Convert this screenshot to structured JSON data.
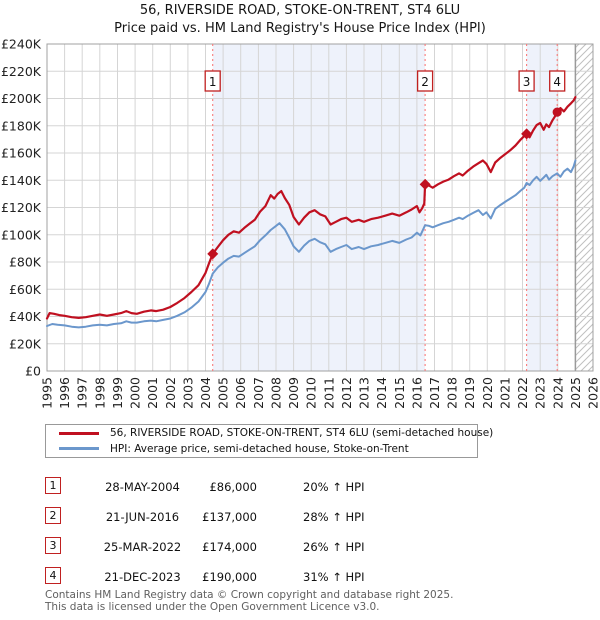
{
  "title": "56, RIVERSIDE ROAD, STOKE-ON-TRENT, ST4 6LU",
  "subtitle": "Price paid vs. HM Land Registry's House Price Index (HPI)",
  "colors": {
    "property_line": "#c01020",
    "hpi_line": "#6b97cc",
    "sale_dashed": "#fa7a7a",
    "band_fill": "#eef2fb",
    "grid": "#d5d5d5",
    "plot_border": "#a0a0a0",
    "badge_border": "#c02020",
    "hatch_line": "#c0c0c0",
    "hatch_edge": "#9a9a9a",
    "text": "#111111"
  },
  "chart_data": {
    "type": "line",
    "title": "56, RIVERSIDE ROAD, STOKE-ON-TRENT, ST4 6LU — Price paid vs. HM Land Registry's House Price Index (HPI)",
    "xlabel": "",
    "ylabel": "",
    "x_axis": {
      "range": [
        1995,
        2026
      ],
      "ticks": [
        "1995",
        "1996",
        "1997",
        "1998",
        "1999",
        "2000",
        "2001",
        "2002",
        "2003",
        "2004",
        "2005",
        "2006",
        "2007",
        "2008",
        "2009",
        "2010",
        "2011",
        "2012",
        "2013",
        "2014",
        "2015",
        "2016",
        "2017",
        "2018",
        "2019",
        "2020",
        "2021",
        "2022",
        "2023",
        "2024",
        "2025",
        "2026"
      ]
    },
    "y_axis": {
      "max_k": 240,
      "tick_step_k": 20,
      "ticks": [
        "£0",
        "£20K",
        "£40K",
        "£60K",
        "£80K",
        "£100K",
        "£120K",
        "£140K",
        "£160K",
        "£180K",
        "£200K",
        "£220K",
        "£240K"
      ]
    },
    "units": "GBP thousands",
    "grid": true,
    "legend_position": "below",
    "shaded_bands": [
      [
        2004.41,
        2016.47
      ],
      [
        2022.23,
        2023.97
      ]
    ],
    "hatch_region": [
      2025,
      2026
    ],
    "series": [
      {
        "name": "56, RIVERSIDE ROAD, STOKE-ON-TRENT, ST4 6LU (semi-detached house)",
        "color": "#c01020",
        "width": 2.2,
        "points": [
          [
            1995.0,
            38.5
          ],
          [
            1995.15,
            42.5
          ],
          [
            1995.4,
            42.0
          ],
          [
            1995.7,
            41.0
          ],
          [
            1996.0,
            40.5
          ],
          [
            1996.4,
            39.5
          ],
          [
            1996.8,
            39.0
          ],
          [
            1997.2,
            39.5
          ],
          [
            1997.6,
            40.5
          ],
          [
            1998.0,
            41.5
          ],
          [
            1998.4,
            40.5
          ],
          [
            1998.8,
            41.5
          ],
          [
            1999.2,
            42.5
          ],
          [
            1999.5,
            44.0
          ],
          [
            1999.8,
            42.5
          ],
          [
            2000.1,
            42.0
          ],
          [
            2000.5,
            43.5
          ],
          [
            2000.9,
            44.5
          ],
          [
            2001.2,
            44.0
          ],
          [
            2001.6,
            45.0
          ],
          [
            2002.0,
            47.0
          ],
          [
            2002.4,
            50.0
          ],
          [
            2002.8,
            53.5
          ],
          [
            2003.2,
            58.0
          ],
          [
            2003.6,
            63.0
          ],
          [
            2004.0,
            72.0
          ],
          [
            2004.2,
            79.0
          ],
          [
            2004.41,
            86.0
          ],
          [
            2004.7,
            91.0
          ],
          [
            2005.0,
            96.0
          ],
          [
            2005.3,
            100.0
          ],
          [
            2005.6,
            102.5
          ],
          [
            2005.9,
            101.5
          ],
          [
            2006.2,
            105.0
          ],
          [
            2006.5,
            108.0
          ],
          [
            2006.8,
            111.0
          ],
          [
            2007.1,
            117.0
          ],
          [
            2007.4,
            121.0
          ],
          [
            2007.7,
            129.0
          ],
          [
            2007.9,
            126.5
          ],
          [
            2008.1,
            130.0
          ],
          [
            2008.3,
            132.0
          ],
          [
            2008.5,
            127.0
          ],
          [
            2008.75,
            122.0
          ],
          [
            2009.0,
            113.0
          ],
          [
            2009.3,
            107.5
          ],
          [
            2009.6,
            112.5
          ],
          [
            2009.9,
            116.5
          ],
          [
            2010.2,
            118.0
          ],
          [
            2010.5,
            115.0
          ],
          [
            2010.8,
            113.5
          ],
          [
            2011.1,
            107.5
          ],
          [
            2011.4,
            109.5
          ],
          [
            2011.7,
            111.5
          ],
          [
            2012.0,
            112.5
          ],
          [
            2012.3,
            109.5
          ],
          [
            2012.7,
            111.0
          ],
          [
            2013.0,
            109.5
          ],
          [
            2013.4,
            111.5
          ],
          [
            2013.8,
            112.5
          ],
          [
            2014.2,
            114.0
          ],
          [
            2014.6,
            115.5
          ],
          [
            2015.0,
            114.0
          ],
          [
            2015.4,
            116.5
          ],
          [
            2015.7,
            118.5
          ],
          [
            2016.0,
            121.0
          ],
          [
            2016.15,
            116.5
          ],
          [
            2016.3,
            119.5
          ],
          [
            2016.42,
            123.0
          ],
          [
            2016.47,
            137.0
          ],
          [
            2016.7,
            136.0
          ],
          [
            2016.9,
            134.5
          ],
          [
            2017.2,
            137.0
          ],
          [
            2017.5,
            139.0
          ],
          [
            2017.8,
            140.5
          ],
          [
            2018.1,
            143.0
          ],
          [
            2018.4,
            145.0
          ],
          [
            2018.6,
            143.5
          ],
          [
            2018.9,
            147.0
          ],
          [
            2019.2,
            150.0
          ],
          [
            2019.5,
            152.5
          ],
          [
            2019.75,
            154.5
          ],
          [
            2019.95,
            152.0
          ],
          [
            2020.2,
            146.0
          ],
          [
            2020.45,
            153.0
          ],
          [
            2020.7,
            156.0
          ],
          [
            2021.0,
            159.0
          ],
          [
            2021.3,
            162.0
          ],
          [
            2021.6,
            165.5
          ],
          [
            2021.9,
            170.0
          ],
          [
            2022.1,
            172.5
          ],
          [
            2022.23,
            174.0
          ],
          [
            2022.4,
            171.5
          ],
          [
            2022.6,
            176.5
          ],
          [
            2022.8,
            180.5
          ],
          [
            2023.0,
            182.0
          ],
          [
            2023.2,
            177.0
          ],
          [
            2023.35,
            181.0
          ],
          [
            2023.5,
            179.0
          ],
          [
            2023.7,
            184.0
          ],
          [
            2023.85,
            187.0
          ],
          [
            2023.97,
            190.0
          ],
          [
            2024.15,
            193.0
          ],
          [
            2024.35,
            190.5
          ],
          [
            2024.55,
            194.0
          ],
          [
            2024.75,
            196.5
          ],
          [
            2024.9,
            198.5
          ],
          [
            2025.0,
            201.0
          ]
        ]
      },
      {
        "name": "HPI: Average price, semi-detached house, Stoke-on-Trent",
        "color": "#6b97cc",
        "width": 2.0,
        "points": [
          [
            1995.0,
            33.0
          ],
          [
            1995.3,
            34.5
          ],
          [
            1995.6,
            34.0
          ],
          [
            1996.0,
            33.5
          ],
          [
            1996.4,
            32.5
          ],
          [
            1996.8,
            32.0
          ],
          [
            1997.2,
            32.5
          ],
          [
            1997.6,
            33.5
          ],
          [
            1998.0,
            34.0
          ],
          [
            1998.4,
            33.5
          ],
          [
            1998.8,
            34.5
          ],
          [
            1999.2,
            35.0
          ],
          [
            1999.5,
            36.5
          ],
          [
            1999.8,
            35.5
          ],
          [
            2000.1,
            35.5
          ],
          [
            2000.5,
            36.5
          ],
          [
            2000.9,
            37.0
          ],
          [
            2001.2,
            36.5
          ],
          [
            2001.6,
            37.5
          ],
          [
            2002.0,
            38.5
          ],
          [
            2002.4,
            40.5
          ],
          [
            2002.8,
            43.0
          ],
          [
            2003.2,
            46.5
          ],
          [
            2003.6,
            51.0
          ],
          [
            2004.0,
            58.0
          ],
          [
            2004.2,
            64.0
          ],
          [
            2004.41,
            71.5
          ],
          [
            2004.7,
            76.0
          ],
          [
            2005.0,
            79.5
          ],
          [
            2005.3,
            82.5
          ],
          [
            2005.6,
            84.5
          ],
          [
            2005.9,
            84.0
          ],
          [
            2006.2,
            86.5
          ],
          [
            2006.5,
            89.0
          ],
          [
            2006.8,
            91.5
          ],
          [
            2007.1,
            96.0
          ],
          [
            2007.4,
            99.5
          ],
          [
            2007.7,
            103.5
          ],
          [
            2008.0,
            106.5
          ],
          [
            2008.2,
            108.5
          ],
          [
            2008.5,
            104.0
          ],
          [
            2008.75,
            98.0
          ],
          [
            2009.0,
            91.5
          ],
          [
            2009.3,
            87.5
          ],
          [
            2009.6,
            92.0
          ],
          [
            2009.9,
            95.5
          ],
          [
            2010.2,
            97.0
          ],
          [
            2010.5,
            94.5
          ],
          [
            2010.8,
            93.0
          ],
          [
            2011.1,
            87.5
          ],
          [
            2011.4,
            89.5
          ],
          [
            2011.7,
            91.0
          ],
          [
            2012.0,
            92.5
          ],
          [
            2012.3,
            89.5
          ],
          [
            2012.7,
            91.0
          ],
          [
            2013.0,
            89.5
          ],
          [
            2013.4,
            91.5
          ],
          [
            2013.8,
            92.5
          ],
          [
            2014.2,
            94.0
          ],
          [
            2014.6,
            95.5
          ],
          [
            2015.0,
            94.0
          ],
          [
            2015.4,
            96.5
          ],
          [
            2015.7,
            98.0
          ],
          [
            2016.0,
            101.5
          ],
          [
            2016.2,
            99.5
          ],
          [
            2016.47,
            107.0
          ],
          [
            2016.7,
            106.5
          ],
          [
            2016.9,
            105.5
          ],
          [
            2017.2,
            107.0
          ],
          [
            2017.5,
            108.5
          ],
          [
            2017.8,
            109.5
          ],
          [
            2018.1,
            111.0
          ],
          [
            2018.4,
            112.5
          ],
          [
            2018.6,
            111.5
          ],
          [
            2018.9,
            114.0
          ],
          [
            2019.2,
            116.0
          ],
          [
            2019.5,
            118.0
          ],
          [
            2019.75,
            114.5
          ],
          [
            2019.95,
            116.5
          ],
          [
            2020.2,
            112.0
          ],
          [
            2020.45,
            119.0
          ],
          [
            2020.7,
            121.5
          ],
          [
            2021.0,
            124.0
          ],
          [
            2021.3,
            126.5
          ],
          [
            2021.6,
            129.0
          ],
          [
            2021.9,
            132.5
          ],
          [
            2022.1,
            134.5
          ],
          [
            2022.23,
            138.0
          ],
          [
            2022.4,
            136.5
          ],
          [
            2022.6,
            140.0
          ],
          [
            2022.8,
            142.5
          ],
          [
            2023.0,
            139.5
          ],
          [
            2023.2,
            142.0
          ],
          [
            2023.35,
            144.0
          ],
          [
            2023.5,
            140.5
          ],
          [
            2023.7,
            143.0
          ],
          [
            2023.97,
            145.0
          ],
          [
            2024.15,
            142.5
          ],
          [
            2024.35,
            146.5
          ],
          [
            2024.55,
            148.5
          ],
          [
            2024.75,
            146.0
          ],
          [
            2024.9,
            150.0
          ],
          [
            2025.0,
            154.5
          ]
        ]
      }
    ],
    "sales": [
      {
        "num": "1",
        "x": 2004.41,
        "price_k": 86,
        "marker": "diamond"
      },
      {
        "num": "2",
        "x": 2016.47,
        "price_k": 137,
        "marker": "diamond"
      },
      {
        "num": "3",
        "x": 2022.23,
        "price_k": 174,
        "marker": "diamond"
      },
      {
        "num": "4",
        "x": 2023.97,
        "price_k": 190,
        "marker": "circle"
      }
    ]
  },
  "legend": {
    "entries": [
      {
        "label": "56, RIVERSIDE ROAD, STOKE-ON-TRENT, ST4 6LU (semi-detached house)",
        "color": "#c01020"
      },
      {
        "label": "HPI: Average price, semi-detached house, Stoke-on-Trent",
        "color": "#6b97cc"
      }
    ]
  },
  "sales_table": {
    "rows": [
      {
        "num": "1",
        "date": "28-MAY-2004",
        "price": "£86,000",
        "hpi": "20% ↑ HPI"
      },
      {
        "num": "2",
        "date": "21-JUN-2016",
        "price": "£137,000",
        "hpi": "28% ↑ HPI"
      },
      {
        "num": "3",
        "date": "25-MAR-2022",
        "price": "£174,000",
        "hpi": "26% ↑ HPI"
      },
      {
        "num": "4",
        "date": "21-DEC-2023",
        "price": "£190,000",
        "hpi": "31% ↑ HPI"
      }
    ]
  },
  "footer": {
    "line1": "Contains HM Land Registry data © Crown copyright and database right 2025.",
    "line2": "This data is licensed under the Open Government Licence v3.0."
  }
}
